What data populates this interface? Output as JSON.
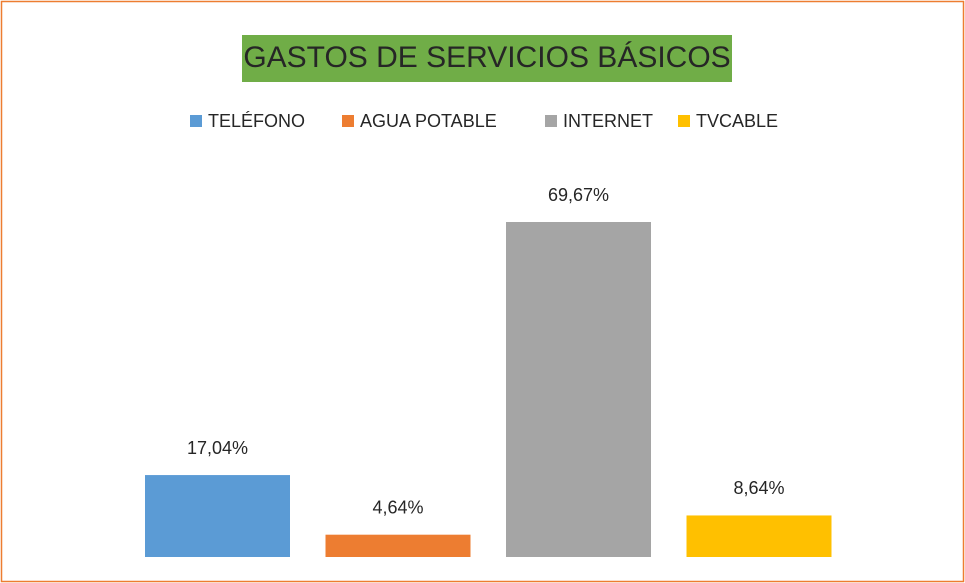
{
  "chart_data": {
    "type": "bar",
    "title": "GASTOS DE SERVICIOS BÁSICOS",
    "categories": [
      null
    ],
    "series": [
      {
        "name": "TELÉFONO",
        "color": "#5b9bd5",
        "values": [
          17.04
        ],
        "value_labels": [
          "17,04%"
        ]
      },
      {
        "name": "AGUA POTABLE",
        "color": "#ed7d31",
        "values": [
          4.64
        ],
        "value_labels": [
          "4,64%"
        ]
      },
      {
        "name": "INTERNET",
        "color": "#a5a5a5",
        "values": [
          69.67
        ],
        "value_labels": [
          "69,67%"
        ]
      },
      {
        "name": "TVCABLE",
        "color": "#ffc000",
        "values": [
          8.64
        ],
        "value_labels": [
          "8,64%"
        ]
      }
    ],
    "legend": "top"
  }
}
